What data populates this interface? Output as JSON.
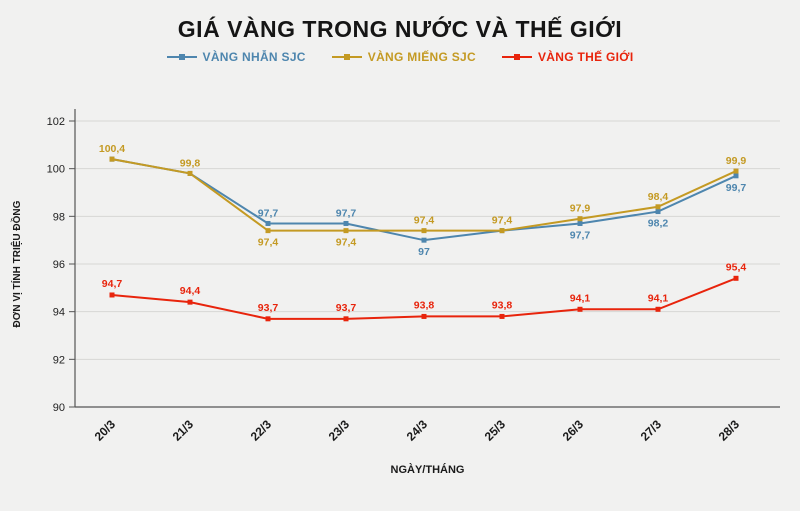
{
  "title": "GIÁ VÀNG TRONG NƯỚC VÀ THẾ GIỚI",
  "chart_data": {
    "type": "line",
    "categories": [
      "20/3",
      "21/3",
      "22/3",
      "23/3",
      "24/3",
      "25/3",
      "26/3",
      "27/3",
      "28/3"
    ],
    "series": [
      {
        "name": "VÀNG NHẪN SJC",
        "color": "#4e86ae",
        "values": [
          100.4,
          99.8,
          97.7,
          97.7,
          97.0,
          97.4,
          97.7,
          98.2,
          99.7
        ],
        "labels": [
          "100,4",
          "99,8",
          "97,7",
          "97,7",
          "97",
          "97,4",
          "97,7",
          "98,2",
          "99,7"
        ]
      },
      {
        "name": "VÀNG MIẾNG SJC",
        "color": "#c49a23",
        "values": [
          100.4,
          99.8,
          97.4,
          97.4,
          97.4,
          97.4,
          97.9,
          98.4,
          99.9
        ],
        "labels": [
          "100,4",
          "99,8",
          "97,4",
          "97,4",
          "97,4",
          "97,4",
          "97,9",
          "98,4",
          "99,9"
        ]
      },
      {
        "name": "VÀNG THẾ GIỚI",
        "color": "#e8240c",
        "values": [
          94.7,
          94.4,
          93.7,
          93.7,
          93.8,
          93.8,
          94.1,
          94.1,
          95.4
        ],
        "labels": [
          "94,7",
          "94,4",
          "93,7",
          "93,7",
          "93,8",
          "93,8",
          "94,1",
          "94,1",
          "95,4"
        ]
      }
    ],
    "xlabel": "NGÀY/THÁNG",
    "ylabel": "ĐƠN VỊ TÍNH TRIỆU ĐỒNG",
    "ylim": [
      90,
      102
    ],
    "yticks": [
      90,
      92,
      94,
      96,
      98,
      100,
      102
    ],
    "grid": "horizontal",
    "legend_position": "top"
  }
}
